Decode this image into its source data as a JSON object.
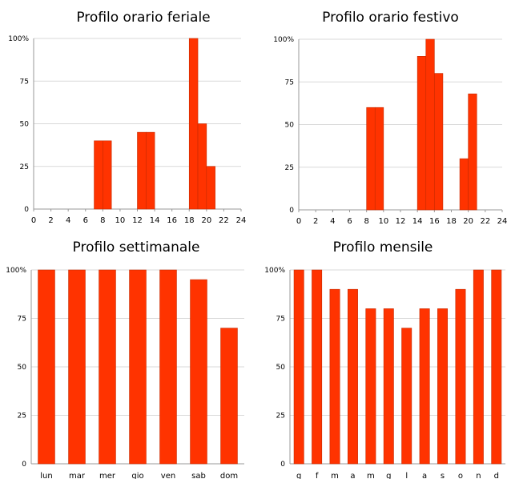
{
  "chart_data": [
    {
      "type": "bar",
      "title": "Profilo orario feriale",
      "xlabel": "",
      "ylabel": "",
      "xlim": [
        0,
        24
      ],
      "ylim": [
        0,
        100
      ],
      "yticks": [
        "0",
        "25",
        "50",
        "75",
        "100%"
      ],
      "xticks": [
        "0",
        "2",
        "4",
        "6",
        "8",
        "10",
        "12",
        "14",
        "16",
        "18",
        "20",
        "22",
        "24"
      ],
      "bars": [
        {
          "start": 7,
          "end": 8,
          "value": 40
        },
        {
          "start": 8,
          "end": 9,
          "value": 40
        },
        {
          "start": 12,
          "end": 13,
          "value": 45
        },
        {
          "start": 13,
          "end": 14,
          "value": 45
        },
        {
          "start": 18,
          "end": 19,
          "value": 100
        },
        {
          "start": 19,
          "end": 20,
          "value": 50
        },
        {
          "start": 20,
          "end": 21,
          "value": 25
        }
      ],
      "grid": true
    },
    {
      "type": "bar",
      "title": "Profilo orario festivo",
      "xlabel": "",
      "ylabel": "",
      "xlim": [
        0,
        24
      ],
      "ylim": [
        0,
        100
      ],
      "yticks": [
        "0",
        "25",
        "50",
        "75",
        "100%"
      ],
      "xticks": [
        "0",
        "2",
        "4",
        "6",
        "8",
        "10",
        "12",
        "14",
        "16",
        "18",
        "20",
        "22",
        "24"
      ],
      "bars": [
        {
          "start": 8,
          "end": 9,
          "value": 60
        },
        {
          "start": 9,
          "end": 10,
          "value": 60
        },
        {
          "start": 14,
          "end": 15,
          "value": 90
        },
        {
          "start": 15,
          "end": 16,
          "value": 100
        },
        {
          "start": 16,
          "end": 17,
          "value": 80
        },
        {
          "start": 19,
          "end": 20,
          "value": 30
        },
        {
          "start": 20,
          "end": 21,
          "value": 68
        }
      ],
      "grid": true
    },
    {
      "type": "bar",
      "title": "Profilo settimanale",
      "xlabel": "",
      "ylabel": "",
      "ylim": [
        0,
        100
      ],
      "yticks": [
        "0",
        "25",
        "50",
        "75",
        "100%"
      ],
      "categories": [
        "lun",
        "mar",
        "mer",
        "gio",
        "ven",
        "sab",
        "dom"
      ],
      "values": [
        100,
        100,
        100,
        100,
        100,
        95,
        70
      ],
      "grid": true
    },
    {
      "type": "bar",
      "title": "Profilo mensile",
      "xlabel": "",
      "ylabel": "",
      "ylim": [
        0,
        100
      ],
      "yticks": [
        "0",
        "25",
        "50",
        "75",
        "100%"
      ],
      "categories": [
        "g",
        "f",
        "m",
        "a",
        "m",
        "g",
        "l",
        "a",
        "s",
        "o",
        "n",
        "d"
      ],
      "values": [
        100,
        100,
        90,
        90,
        80,
        80,
        70,
        80,
        80,
        90,
        100,
        100
      ],
      "grid": true
    }
  ],
  "colors": {
    "bar_fill": "#ff3300",
    "bar_edge": "#c62a00",
    "grid": "#d9d9d9"
  }
}
